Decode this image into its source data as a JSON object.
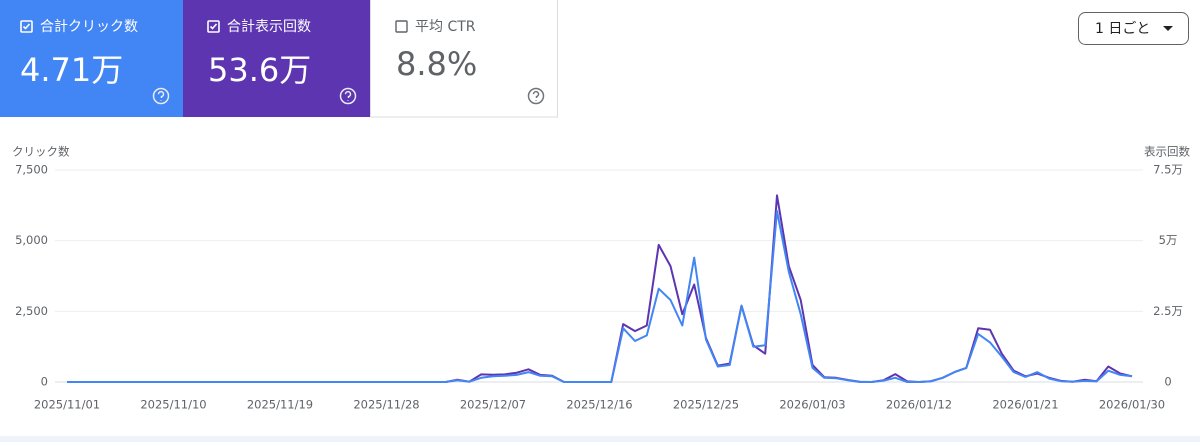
{
  "cards": [
    {
      "label": "合計クリック数",
      "value": "4.71万"
    },
    {
      "label": "合計表示回数",
      "value": "53.6万"
    },
    {
      "label": "平均 CTR",
      "value": "8.8%"
    }
  ],
  "granularity": "1 日ごと",
  "chart_data": {
    "type": "line",
    "y_label": "クリック数",
    "y2_label": "表示回数",
    "categories": [
      "2025/11/01",
      null,
      null,
      null,
      null,
      null,
      null,
      null,
      null,
      "2025/11/10",
      null,
      null,
      null,
      null,
      null,
      null,
      null,
      null,
      "2025/11/19",
      null,
      null,
      null,
      null,
      null,
      null,
      null,
      null,
      "2025/11/28",
      null,
      null,
      null,
      null,
      null,
      null,
      null,
      null,
      "2025/12/07",
      null,
      null,
      null,
      null,
      null,
      null,
      null,
      null,
      "2025/12/16",
      null,
      null,
      null,
      null,
      null,
      null,
      null,
      null,
      "2025/12/25",
      null,
      null,
      null,
      null,
      null,
      null,
      null,
      null,
      "2026/01/03",
      null,
      null,
      null,
      null,
      null,
      null,
      null,
      null,
      "2026/01/12",
      null,
      null,
      null,
      null,
      null,
      null,
      null,
      null,
      "2026/01/21",
      null,
      null,
      null,
      null,
      null,
      null,
      null,
      null,
      "2026/01/30"
    ],
    "series": [
      {
        "name": "合計表示回数",
        "color": "#5e35b1",
        "axis": "y2",
        "values": [
          0,
          0,
          0,
          0,
          0,
          0,
          0,
          0,
          0,
          0,
          0,
          0,
          0,
          0,
          0,
          0,
          0,
          0,
          0,
          0,
          0,
          0,
          0,
          0,
          0,
          0,
          0,
          0,
          0,
          0,
          0,
          0,
          0,
          800,
          100,
          2700,
          2600,
          2700,
          3300,
          4500,
          2500,
          2200,
          0,
          0,
          0,
          0,
          0,
          20500,
          18000,
          20000,
          48500,
          41000,
          24000,
          34500,
          15500,
          5800,
          6500,
          27000,
          13000,
          10000,
          66000,
          41000,
          29000,
          6000,
          1700,
          1500,
          700,
          100,
          0,
          600,
          2800,
          200,
          0,
          300,
          1500,
          3500,
          5000,
          19000,
          18500,
          10000,
          4000,
          2000,
          3000,
          1500,
          400,
          100,
          800,
          300,
          5500,
          3000,
          2000
        ]
      },
      {
        "name": "合計クリック数",
        "color": "#4285f4",
        "values": [
          0,
          0,
          0,
          0,
          0,
          0,
          0,
          0,
          0,
          0,
          0,
          0,
          0,
          0,
          0,
          0,
          0,
          0,
          0,
          0,
          0,
          0,
          0,
          0,
          0,
          0,
          0,
          0,
          0,
          0,
          0,
          0,
          0,
          60,
          10,
          150,
          200,
          220,
          250,
          350,
          220,
          200,
          0,
          0,
          0,
          0,
          0,
          1900,
          1450,
          1650,
          3300,
          2900,
          2000,
          4400,
          1500,
          550,
          600,
          2700,
          1250,
          1300,
          6050,
          3900,
          2400,
          500,
          150,
          130,
          60,
          0,
          0,
          50,
          150,
          0,
          0,
          20,
          150,
          350,
          500,
          1700,
          1400,
          900,
          350,
          180,
          350,
          120,
          30,
          10,
          40,
          20,
          400,
          250,
          200
        ]
      }
    ],
    "ylim": [
      0,
      7500
    ],
    "yticks": [
      0,
      {
        "value": 2500,
        "label": "2,500"
      },
      {
        "value": 5000,
        "label": "5,000"
      },
      {
        "value": 7500,
        "label": "7,500"
      }
    ],
    "y2lim": [
      0,
      75000
    ],
    "y2ticks": [
      0,
      {
        "value": 25000,
        "label": "2.5万"
      },
      {
        "value": 50000,
        "label": "5万"
      },
      {
        "value": 75000,
        "label": "7.5万"
      }
    ],
    "grid": true
  }
}
